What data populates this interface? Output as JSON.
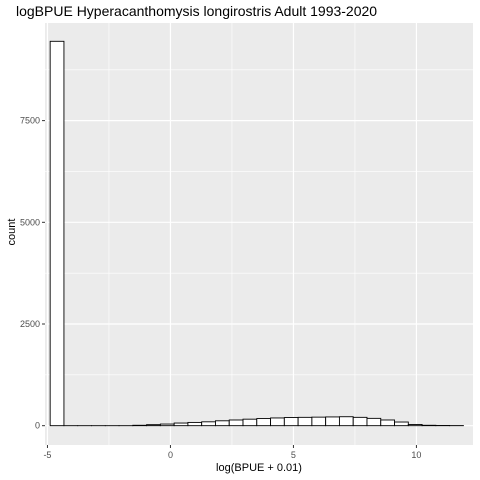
{
  "chart_data": {
    "type": "bar",
    "title": "logBPUE Hyperacanthomysis longirostris Adult  1993-2020",
    "xlabel": "log(BPUE + 0.01)",
    "ylabel": "count",
    "xlim": [
      -5.1,
      12.3
    ],
    "ylim": [
      -475,
      9900
    ],
    "x_ticks": [
      -5,
      0,
      5,
      10
    ],
    "x_tick_labels": [
      "-5",
      "0",
      "5",
      "10"
    ],
    "y_ticks": [
      0,
      2500,
      5000,
      7500
    ],
    "y_tick_labels": [
      "0",
      "2500",
      "5000",
      "7500"
    ],
    "bin_width": 0.56,
    "bin_starts": [
      -4.89,
      -4.33,
      -3.77,
      -3.21,
      -2.65,
      -2.09,
      -1.53,
      -0.97,
      -0.41,
      0.15,
      0.71,
      1.27,
      1.83,
      2.39,
      2.95,
      3.51,
      4.07,
      4.63,
      5.19,
      5.75,
      6.31,
      6.87,
      7.43,
      7.99,
      8.55,
      9.11,
      9.67,
      10.23,
      10.79,
      11.35
    ],
    "counts": [
      9450,
      0,
      0,
      0,
      0,
      0,
      10,
      25,
      40,
      65,
      80,
      95,
      120,
      140,
      160,
      175,
      190,
      200,
      205,
      210,
      215,
      220,
      205,
      180,
      140,
      90,
      30,
      10,
      5,
      2
    ],
    "fill": "#ffffff",
    "outline": "#000000",
    "panel_background": "#ebebeb",
    "grid": true,
    "grid_color": "#ffffff"
  }
}
